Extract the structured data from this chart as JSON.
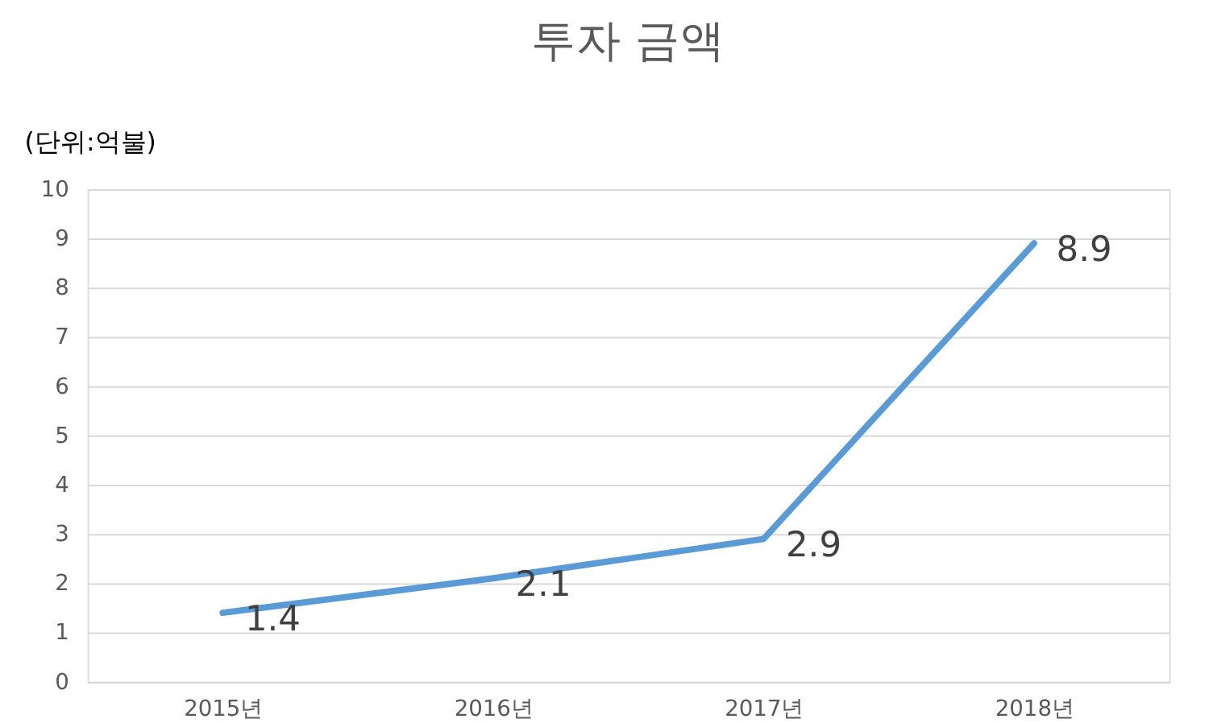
{
  "chart_data": {
    "type": "line",
    "title": "투자 금액",
    "ylabel": "(단위:억불)",
    "categories": [
      "2015년",
      "2016년",
      "2017년",
      "2018년"
    ],
    "series": [
      {
        "color": "#5b9bd5",
        "values": [
          1.4,
          2.1,
          2.9,
          8.9
        ]
      }
    ],
    "ylim": [
      0,
      10
    ],
    "yticks": [
      0,
      1,
      2,
      3,
      4,
      5,
      6,
      7,
      8,
      9,
      10
    ],
    "grid": "y",
    "data_labels": true,
    "marker": "none",
    "line_style": "solid"
  }
}
